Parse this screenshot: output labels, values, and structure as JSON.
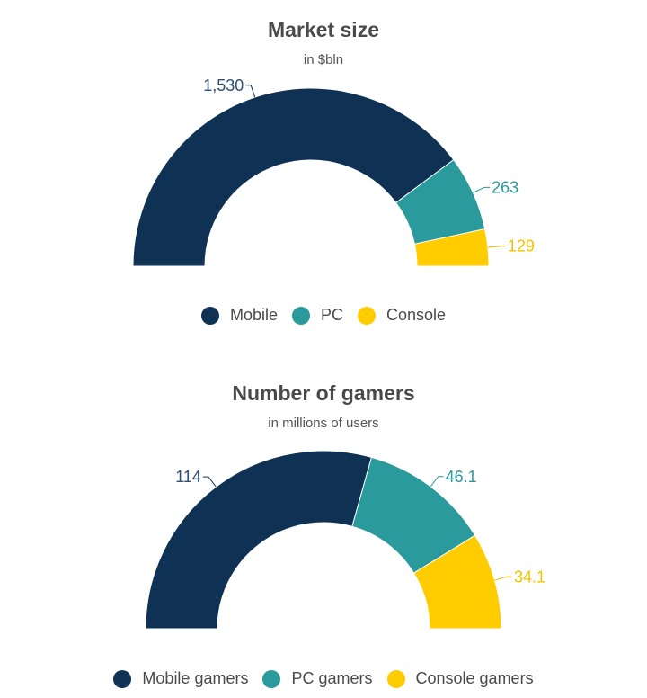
{
  "chart_data": [
    {
      "type": "pie",
      "title": "Market size",
      "subtitle": "in $bln",
      "categories": [
        "Mobile",
        "PC",
        "Console"
      ],
      "values": [
        1530,
        263,
        129
      ],
      "value_labels": [
        "1,530",
        "263",
        "129"
      ],
      "colors": [
        "#0f3254",
        "#2a9a9c",
        "#ffcc00"
      ],
      "legend_position": "bottom"
    },
    {
      "type": "pie",
      "title": "Number of gamers",
      "subtitle": "in millions of users",
      "categories": [
        "Mobile gamers",
        "PC gamers",
        "Console gamers"
      ],
      "values": [
        114,
        46.1,
        34.1
      ],
      "value_labels": [
        "114",
        "46.1",
        "34.1"
      ],
      "colors": [
        "#0f3254",
        "#2a9a9c",
        "#ffcc00"
      ],
      "legend_position": "bottom"
    }
  ]
}
